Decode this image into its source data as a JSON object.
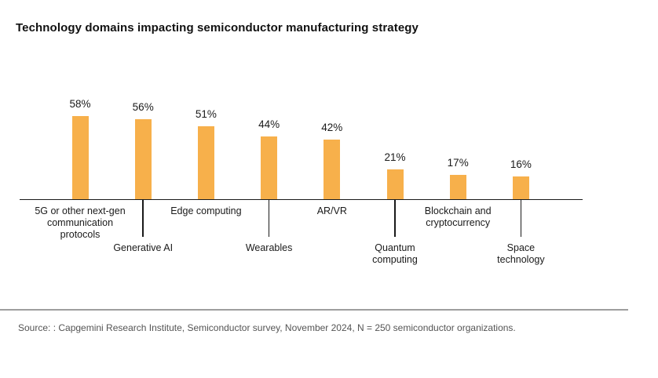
{
  "title": "Technology domains impacting semiconductor manufacturing strategy",
  "source_note": "Source: : Capgemini Research Institute, Semiconductor survey, November 2024, N = 250 semiconductor organizations.",
  "colors": {
    "background": "#ffffff",
    "bar": "#F7B04B",
    "title_text": "#111111",
    "label_text": "#1a1a1a",
    "axis_line": "#1a1a1a",
    "divider_line": "#9e9e9e",
    "source_text": "#545454"
  },
  "chart_data": {
    "type": "bar",
    "title": "Technology domains impacting semiconductor manufacturing strategy",
    "categories": [
      "5G or other next-gen\ncommunication\nprotocols",
      "Generative AI",
      "Edge computing",
      "Wearables",
      "AR/VR",
      "Quantum\ncomputing",
      "Blockchain and\ncryptocurrency",
      "Space\ntechnology"
    ],
    "values": [
      58,
      56,
      51,
      44,
      42,
      21,
      17,
      16
    ],
    "value_labels": [
      "58%",
      "56%",
      "51%",
      "44%",
      "42%",
      "21%",
      "17%",
      "16%"
    ],
    "unit": "%",
    "xlabel": "",
    "ylabel": "",
    "ylim": [
      0,
      65
    ],
    "grid": false,
    "legend": false,
    "y_axis_shown": false,
    "staggered_category_labels": true,
    "bar_color": "#F7B04B"
  }
}
